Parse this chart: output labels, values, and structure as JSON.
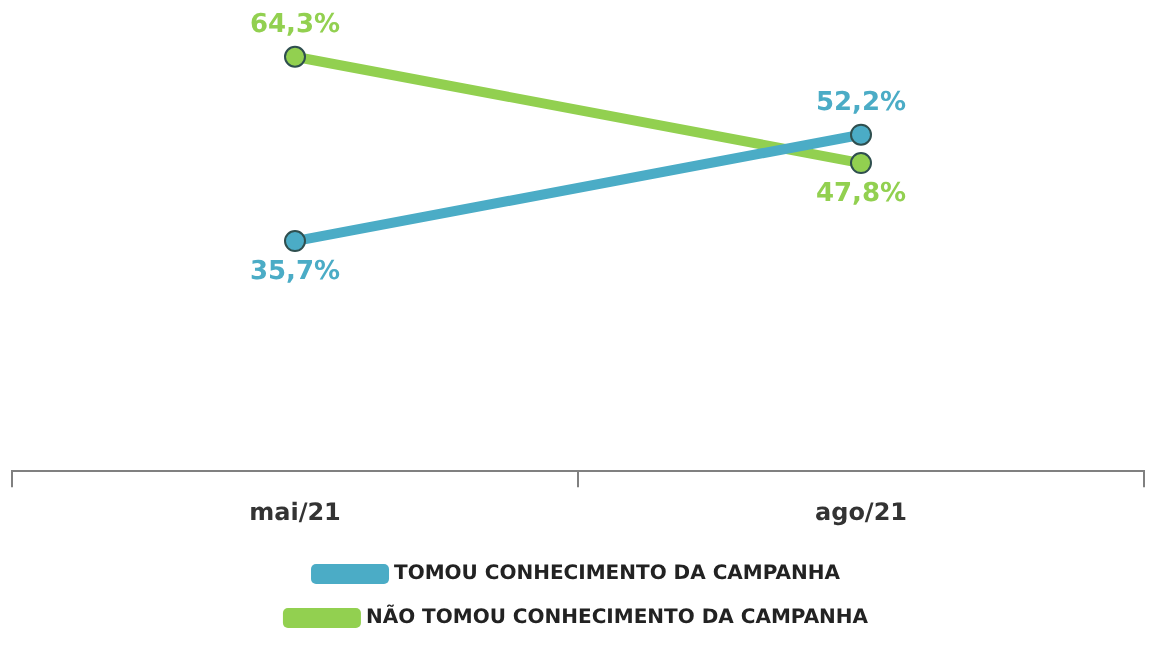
{
  "chart_data": {
    "type": "line",
    "categories": [
      "mai/21",
      "ago/21"
    ],
    "series": [
      {
        "name": "TOMOU CONHECIMENTO DA CAMPANHA",
        "color": "#4bacc6",
        "values": [
          35.7,
          52.2
        ],
        "value_labels": [
          "35,7%",
          "52,2%"
        ]
      },
      {
        "name": "NÃO TOMOU CONHECIMENTO DA CAMPANHA",
        "color": "#92d050",
        "values": [
          64.3,
          47.8
        ],
        "value_labels": [
          "64,3%",
          "47,8%"
        ]
      }
    ],
    "legend": "bottom",
    "marker": "circle",
    "line_style": "solid",
    "grid": false,
    "tick_labels": "x"
  }
}
